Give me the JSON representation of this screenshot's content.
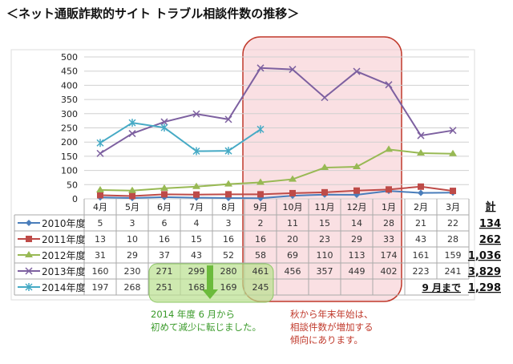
{
  "title": "＜ネット通販詐欺的サイト トラブル相談件数の推移＞",
  "chart_data": {
    "type": "line",
    "title": "＜ネット通販詐欺的サイト トラブル相談件数の推移＞",
    "categories": [
      "4月",
      "5月",
      "6月",
      "7月",
      "8月",
      "9月",
      "10月",
      "11月",
      "12月",
      "1月",
      "2月",
      "3月"
    ],
    "ylim": [
      0,
      500
    ],
    "yticks": [
      0,
      50,
      100,
      150,
      200,
      250,
      300,
      350,
      400,
      450,
      500
    ],
    "grid": true,
    "total_header": "計",
    "series": [
      {
        "name": "2010年度",
        "color": "#4a7ebb",
        "marker": "diamond",
        "values": [
          5,
          3,
          6,
          4,
          3,
          2,
          11,
          15,
          14,
          28,
          21,
          22
        ],
        "total": "134"
      },
      {
        "name": "2011年度",
        "color": "#be4b48",
        "marker": "square",
        "values": [
          13,
          10,
          16,
          15,
          16,
          16,
          20,
          23,
          29,
          33,
          43,
          28
        ],
        "total": "262"
      },
      {
        "name": "2012年度",
        "color": "#98b954",
        "marker": "triangle",
        "values": [
          31,
          29,
          37,
          43,
          52,
          58,
          69,
          110,
          113,
          174,
          161,
          159
        ],
        "total": "1,036"
      },
      {
        "name": "2013年度",
        "color": "#7d60a0",
        "marker": "x",
        "values": [
          160,
          230,
          271,
          299,
          280,
          461,
          456,
          357,
          449,
          402,
          223,
          241
        ],
        "total": "3,829"
      },
      {
        "name": "2014年度",
        "color": "#46aac5",
        "marker": "star",
        "values": [
          197,
          268,
          251,
          168,
          169,
          245,
          null,
          null,
          null,
          null,
          null,
          null
        ],
        "total": "1,298",
        "total_prefix": "9 月まで"
      }
    ]
  },
  "notes": {
    "green": [
      "2014 年度 6 月から",
      "初めて減少に転じました。"
    ],
    "red": [
      "秋から年末年始は、",
      "相談件数が増加する",
      "傾向にあります。"
    ]
  }
}
